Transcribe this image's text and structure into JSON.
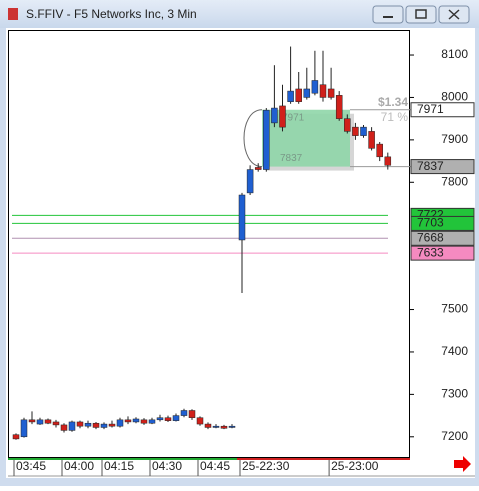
{
  "window": {
    "title": "S.FFIV - F5 Networks Inc, 3 Min"
  },
  "chart_data": {
    "type": "candlestick",
    "categories": [
      null,
      null,
      null,
      null,
      null,
      null,
      null,
      null,
      null,
      null,
      null,
      null,
      null,
      null,
      null,
      null,
      null,
      null,
      null,
      null,
      null,
      null,
      null,
      null,
      null,
      null,
      null,
      null,
      null,
      null,
      null,
      null,
      null,
      null,
      null,
      null,
      null,
      null,
      null,
      null,
      null,
      null,
      null,
      null,
      null,
      null,
      null
    ],
    "open": [
      7205,
      7200,
      7240,
      7230,
      7240,
      7235,
      7228,
      7215,
      7235,
      7225,
      7232,
      7222,
      7230,
      7225,
      7240,
      7235,
      7240,
      7232,
      7240,
      7245,
      7238,
      7250,
      7262,
      7245,
      7230,
      7222,
      7225,
      7222,
      7664,
      7775,
      7835,
      7830,
      7940,
      7980,
      7990,
      8020,
      8000,
      8010,
      8030,
      8020,
      8005,
      7950,
      7930,
      7910,
      7920,
      7890,
      7860
    ],
    "high": [
      7208,
      7245,
      7260,
      7245,
      7243,
      7240,
      7232,
      7238,
      7238,
      7238,
      7235,
      7234,
      7238,
      7245,
      7248,
      7246,
      7244,
      7245,
      7252,
      7250,
      7255,
      7266,
      7265,
      7248,
      7234,
      7230,
      7228,
      7230,
      7775,
      7840,
      7845,
      7975,
      8076,
      8030,
      8120,
      8060,
      8070,
      8110,
      8110,
      8070,
      8015,
      7960,
      7940,
      7935,
      7930,
      7895,
      7870
    ],
    "low": [
      7193,
      7198,
      7230,
      7228,
      7230,
      7222,
      7210,
      7212,
      7220,
      7220,
      7218,
      7218,
      7222,
      7222,
      7230,
      7232,
      7228,
      7230,
      7236,
      7235,
      7236,
      7246,
      7240,
      7226,
      7218,
      7220,
      7218,
      7220,
      7539,
      7770,
      7825,
      7825,
      7930,
      7920,
      7985,
      7985,
      7995,
      8005,
      7990,
      7995,
      7945,
      7915,
      7900,
      7905,
      7875,
      7850,
      7830
    ],
    "close": [
      7195,
      7240,
      7235,
      7240,
      7232,
      7228,
      7215,
      7235,
      7225,
      7232,
      7222,
      7230,
      7225,
      7240,
      7235,
      7242,
      7232,
      7240,
      7245,
      7238,
      7250,
      7262,
      7245,
      7230,
      7222,
      7225,
      7220,
      7225,
      7770,
      7830,
      7830,
      7970,
      7975,
      7930,
      8015,
      7990,
      8020,
      8040,
      8000,
      8000,
      7950,
      7920,
      7910,
      7930,
      7880,
      7860,
      7840
    ],
    "up_color": "#1f5fd1",
    "down_color": "#d0201a",
    "ylim": [
      7150,
      8159
    ],
    "yticks": [
      7200,
      7300,
      7400,
      7500,
      7800,
      7900,
      8000,
      8100
    ],
    "xticks": [
      {
        "value": 0,
        "label": "03:45"
      },
      {
        "value": 6,
        "label": "04:00"
      },
      {
        "value": 11,
        "label": "04:15"
      },
      {
        "value": 17,
        "label": "04:30"
      },
      {
        "value": 23,
        "label": "04:45"
      },
      {
        "value": 28,
        "label": "25-22:30"
      },
      {
        "value": 39,
        "label": "25-23:00"
      }
    ],
    "levels": [
      {
        "value": 7971,
        "color": "#ffffff",
        "line": "#999999"
      },
      {
        "value": 7837,
        "color": "#b0b0b0",
        "line": "#999999"
      },
      {
        "value": 7722,
        "color": "#22c43a",
        "line": "#22c43a"
      },
      {
        "value": 7703,
        "color": "#22c43a",
        "line": "#22c43a"
      },
      {
        "value": 7668,
        "color": "#b0b0b0",
        "line": "#b090b0"
      },
      {
        "value": 7633,
        "color": "#f58ac0",
        "line": "#f58ac0"
      }
    ],
    "annotation": {
      "change": "$1.34",
      "percent": "71 %",
      "top": 7971,
      "bottom": 7837
    }
  }
}
